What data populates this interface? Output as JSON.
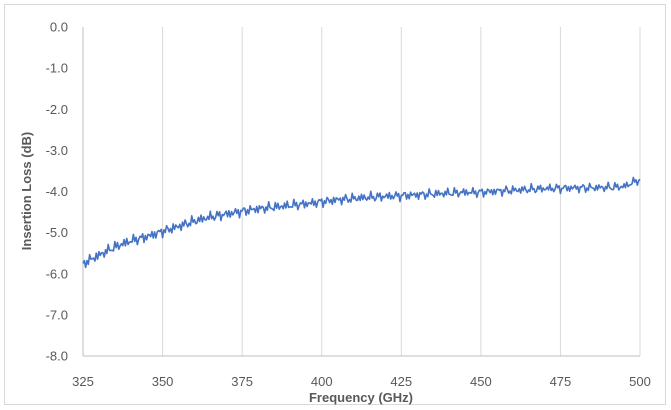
{
  "chart_data": {
    "type": "line",
    "title": "",
    "xlabel": "Frequency (GHz)",
    "ylabel": "Insertion Loss (dB)",
    "xlim": [
      325,
      500
    ],
    "ylim": [
      -8.0,
      0.0
    ],
    "x_ticks": [
      "325",
      "350",
      "375",
      "400",
      "425",
      "450",
      "475",
      "500"
    ],
    "y_ticks": [
      "0.0",
      "-1.0",
      "-2.0",
      "-3.0",
      "-4.0",
      "-5.0",
      "-6.0",
      "-7.0",
      "-8.0"
    ],
    "grid": "vertical",
    "legend": "none",
    "series": [
      {
        "color": "#4472c4",
        "x": [
          325,
          330,
          335,
          340,
          345,
          350,
          355,
          360,
          365,
          370,
          375,
          380,
          385,
          390,
          395,
          400,
          405,
          410,
          415,
          420,
          425,
          430,
          435,
          440,
          445,
          450,
          455,
          460,
          465,
          470,
          475,
          480,
          485,
          490,
          495,
          500
        ],
        "y": [
          -5.75,
          -5.55,
          -5.35,
          -5.2,
          -5.1,
          -4.97,
          -4.85,
          -4.72,
          -4.62,
          -4.55,
          -4.48,
          -4.42,
          -4.38,
          -4.34,
          -4.3,
          -4.25,
          -4.2,
          -4.17,
          -4.14,
          -4.12,
          -4.1,
          -4.08,
          -4.06,
          -4.04,
          -4.02,
          -4.02,
          -3.99,
          -3.97,
          -3.95,
          -3.93,
          -3.92,
          -3.91,
          -3.91,
          -3.9,
          -3.88,
          -3.7
        ]
      }
    ]
  }
}
